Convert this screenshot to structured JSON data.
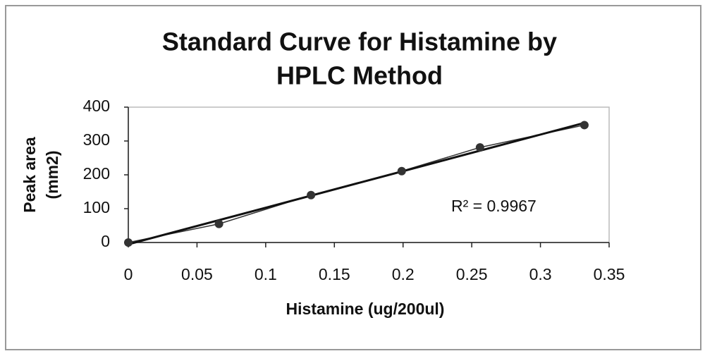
{
  "chart_data": {
    "type": "scatter",
    "title": [
      "Standard Curve for Histamine  by",
      "HPLC Method"
    ],
    "xlabel": "Histamine (ug/200ul)",
    "ylabel": [
      "Peak area",
      "(mm2)"
    ],
    "x": [
      0,
      0.066,
      0.133,
      0.199,
      0.256,
      0.332
    ],
    "series": [
      {
        "name": "Histamine",
        "color": "#333333",
        "values": [
          0,
          55,
          140,
          211,
          281,
          347
        ]
      }
    ],
    "annotation": "R² = 0.9967",
    "trendline": "linear",
    "xlim": [
      0,
      0.35
    ],
    "xticks": [
      0,
      0.05,
      0.1,
      0.15,
      0.2,
      0.25,
      0.3,
      0.35
    ],
    "ylim": [
      0,
      400
    ],
    "yticks": [
      0,
      100,
      200,
      300,
      400
    ],
    "grid": false
  }
}
